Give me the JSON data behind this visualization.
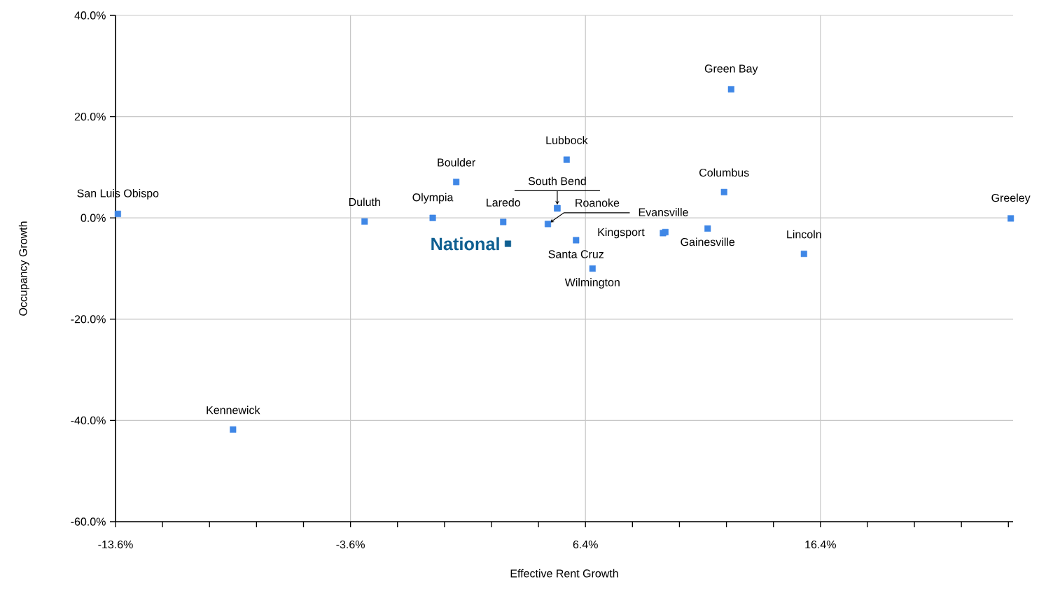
{
  "chart_data": {
    "type": "scatter",
    "xlabel": "Effective Rent Growth",
    "ylabel": "Occupancy Growth",
    "marker": "square",
    "grid": true,
    "xlim": [
      -13.6,
      24.6
    ],
    "ylim": [
      -60,
      40
    ],
    "xticks": [
      {
        "value": -13.6,
        "label": "-13.6%"
      },
      {
        "value": -11.6,
        "label": null
      },
      {
        "value": -9.6,
        "label": null
      },
      {
        "value": -7.6,
        "label": null
      },
      {
        "value": -5.6,
        "label": null
      },
      {
        "value": -3.6,
        "label": "-3.6%"
      },
      {
        "value": -1.6,
        "label": null
      },
      {
        "value": 0.4,
        "label": null
      },
      {
        "value": 2.4,
        "label": null
      },
      {
        "value": 4.4,
        "label": null
      },
      {
        "value": 6.4,
        "label": "6.4%"
      },
      {
        "value": 8.4,
        "label": null
      },
      {
        "value": 10.4,
        "label": null
      },
      {
        "value": 12.4,
        "label": null
      },
      {
        "value": 14.4,
        "label": null
      },
      {
        "value": 16.4,
        "label": "16.4%"
      },
      {
        "value": 18.4,
        "label": null
      },
      {
        "value": 20.4,
        "label": null
      },
      {
        "value": 22.4,
        "label": null
      },
      {
        "value": 24.4,
        "label": null
      }
    ],
    "yticks": [
      {
        "value": -60,
        "label": "-60.0%"
      },
      {
        "value": -40,
        "label": "-40.0%"
      },
      {
        "value": -20,
        "label": "-20.0%"
      },
      {
        "value": 0,
        "label": "0.0%"
      },
      {
        "value": 20,
        "label": "20.0%"
      },
      {
        "value": 40,
        "label": "40.0%"
      }
    ],
    "series": [
      {
        "color": "#3f87e6",
        "x": [
          -13.5,
          -8.6,
          -3.0,
          -0.1,
          0.9,
          2.9,
          5.2,
          5.2,
          4.8,
          5.6,
          6.0,
          6.7,
          9.7,
          9.8,
          11.6,
          12.3,
          12.6,
          15.7,
          24.5
        ],
        "values": [
          0.8,
          -41.8,
          -0.7,
          0.0,
          7.1,
          -0.8,
          1.9,
          1.9,
          -1.2,
          11.5,
          -4.4,
          -10.0,
          -3.0,
          -2.8,
          -2.1,
          5.1,
          25.4,
          -7.1,
          -0.1
        ]
      },
      {
        "name": "National",
        "color": "#0f5f91",
        "x": [
          3.1
        ],
        "values": [
          -5.1
        ]
      }
    ],
    "annotations": [
      {
        "text": "San Luis Obispo",
        "x": -13.5,
        "y": 0.8
      },
      {
        "text": "Kennewick",
        "x": -8.6,
        "y": -41.8
      },
      {
        "text": "Duluth",
        "x": -3.0,
        "y": -0.7
      },
      {
        "text": "Olympia",
        "x": -0.1,
        "y": 0.0
      },
      {
        "text": "Boulder",
        "x": 0.9,
        "y": 7.1
      },
      {
        "text": "Laredo",
        "x": 2.9,
        "y": -0.8
      },
      {
        "text": "South Bend",
        "x": 5.2,
        "y": 1.9
      },
      {
        "text": "Roanoke",
        "x": 5.2,
        "y": 1.9
      },
      {
        "text": "Evansville",
        "x": 4.8,
        "y": -1.2
      },
      {
        "text": "Lubbock",
        "x": 5.6,
        "y": 11.5
      },
      {
        "text": "Santa Cruz",
        "x": 6.0,
        "y": -4.4
      },
      {
        "text": "Wilmington",
        "x": 6.7,
        "y": -10.0
      },
      {
        "text": "Kingsport",
        "x": 9.7,
        "y": -3.0
      },
      {
        "text": "Gainesville",
        "x": 11.6,
        "y": -2.1
      },
      {
        "text": "Columbus",
        "x": 12.3,
        "y": 5.1
      },
      {
        "text": "Green Bay",
        "x": 12.6,
        "y": 25.4
      },
      {
        "text": "Lincoln",
        "x": 15.7,
        "y": -7.1
      },
      {
        "text": "Greeley",
        "x": 24.5,
        "y": -0.1
      }
    ]
  }
}
